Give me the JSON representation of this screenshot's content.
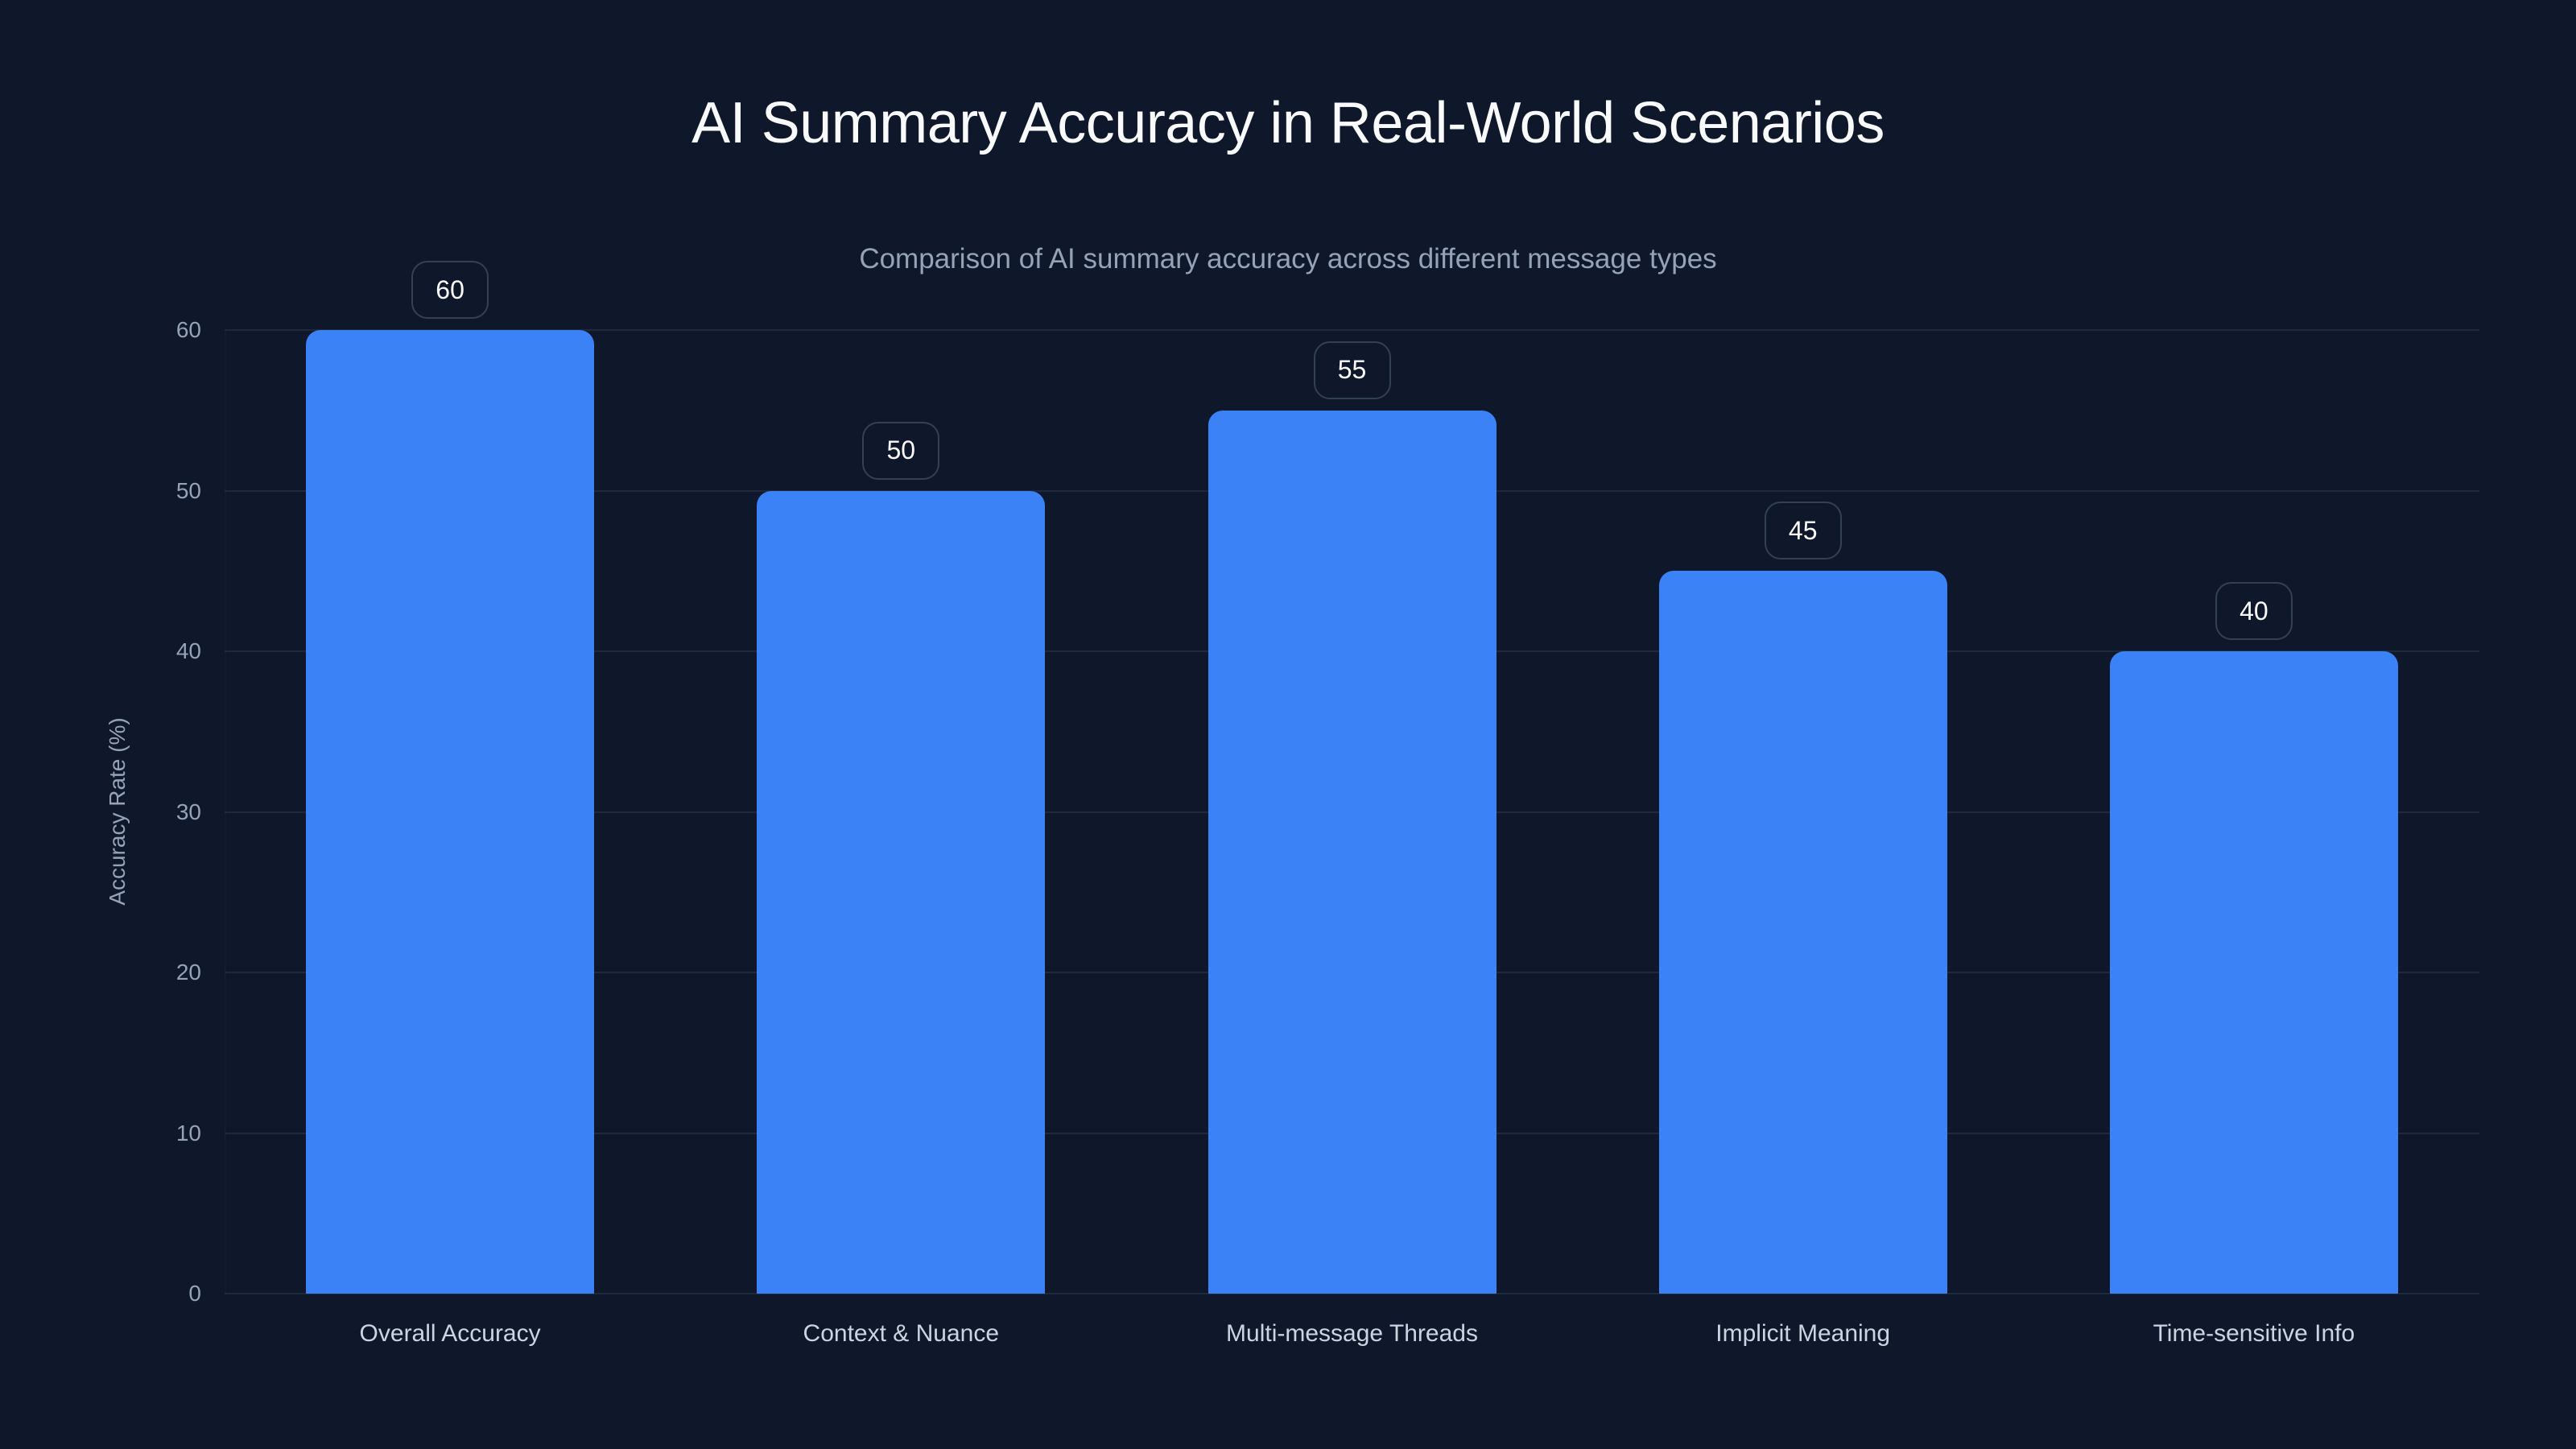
{
  "chart": {
    "title": "AI Summary Accuracy in Real-World Scenarios",
    "subtitle": "Comparison of AI summary accuracy across different message types",
    "ylabel": "Accuracy Rate (%)",
    "yticks": [
      "0",
      "10",
      "20",
      "30",
      "40",
      "50",
      "60"
    ],
    "bar_color": "#3b82f6",
    "background": "#0f172a"
  },
  "chart_data": {
    "type": "bar",
    "title": "AI Summary Accuracy in Real-World Scenarios",
    "subtitle": "Comparison of AI summary accuracy across different message types",
    "xlabel": "",
    "ylabel": "Accuracy Rate (%)",
    "categories": [
      "Overall Accuracy",
      "Context & Nuance",
      "Multi-message Threads",
      "Implicit Meaning",
      "Time-sensitive Info"
    ],
    "values": [
      60,
      50,
      55,
      45,
      40
    ],
    "value_labels": [
      "60",
      "50",
      "55",
      "45",
      "40"
    ],
    "ylim": [
      0,
      60
    ],
    "yticks": [
      0,
      10,
      20,
      30,
      40,
      50,
      60
    ],
    "grid": true,
    "legend": null
  }
}
